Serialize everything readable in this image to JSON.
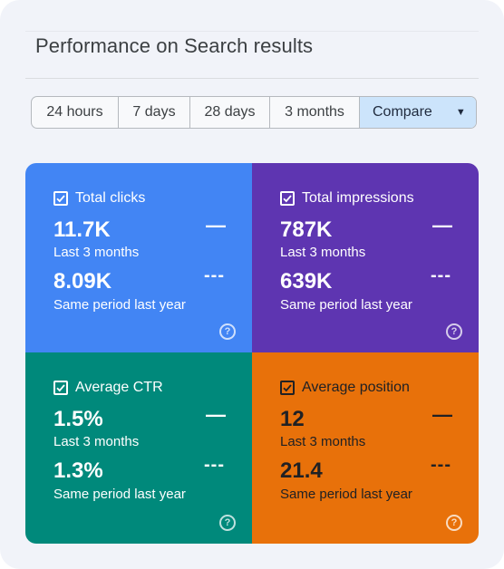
{
  "page": {
    "title": "Performance on Search results"
  },
  "filters": {
    "options": [
      "24 hours",
      "7 days",
      "28 days",
      "3 months"
    ],
    "compare_label": "Compare"
  },
  "metrics": [
    {
      "label": "Total clicks",
      "value": "11.7K",
      "period": "Last 3 months",
      "compare_value": "8.09K",
      "compare_period": "Same period last year",
      "trend": "—",
      "compare_trend": "---",
      "color": "#4285f4"
    },
    {
      "label": "Total impressions",
      "value": "787K",
      "period": "Last 3 months",
      "compare_value": "639K",
      "compare_period": "Same period last year",
      "trend": "—",
      "compare_trend": "---",
      "color": "#5e35b1"
    },
    {
      "label": "Average CTR",
      "value": "1.5%",
      "period": "Last 3 months",
      "compare_value": "1.3%",
      "compare_period": "Same period last year",
      "trend": "—",
      "compare_trend": "---",
      "color": "#00897b"
    },
    {
      "label": "Average position",
      "value": "12",
      "period": "Last 3 months",
      "compare_value": "21.4",
      "compare_period": "Same period last year",
      "trend": "—",
      "compare_trend": "---",
      "color": "#e8710a"
    }
  ],
  "icons": {
    "checkbox": "checkbox-checked-icon",
    "help": "help-circle-icon",
    "dropdown": "caret-down-icon"
  }
}
